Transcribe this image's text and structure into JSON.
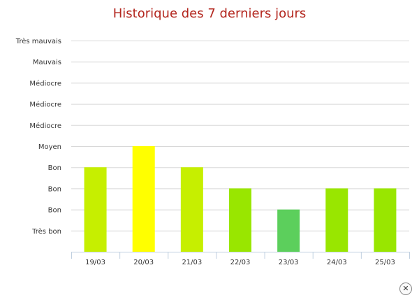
{
  "chart_data": {
    "type": "bar",
    "title": "Historique des 7 derniers jours",
    "xlabel": "",
    "ylabel": "",
    "y_tick_labels": [
      "Très bon",
      "Bon",
      "Bon",
      "Bon",
      "Moyen",
      "Médiocre",
      "Médiocre",
      "Médiocre",
      "Mauvais",
      "Très mauvais"
    ],
    "ylim": [
      0,
      10
    ],
    "grid": true,
    "legend": "none",
    "categories": [
      "19/03",
      "20/03",
      "21/03",
      "22/03",
      "23/03",
      "24/03",
      "25/03"
    ],
    "values": [
      4,
      5,
      4,
      3,
      2,
      3,
      3
    ],
    "bar_colors": [
      "#c6ef00",
      "#ffff00",
      "#c6ef00",
      "#99e600",
      "#5ccf5c",
      "#99e600",
      "#99e600"
    ]
  },
  "colors": {
    "title": "#b3261e",
    "grid": "#d8d8d8",
    "axis": "#c0d0e0"
  },
  "close_icon": "close-icon"
}
